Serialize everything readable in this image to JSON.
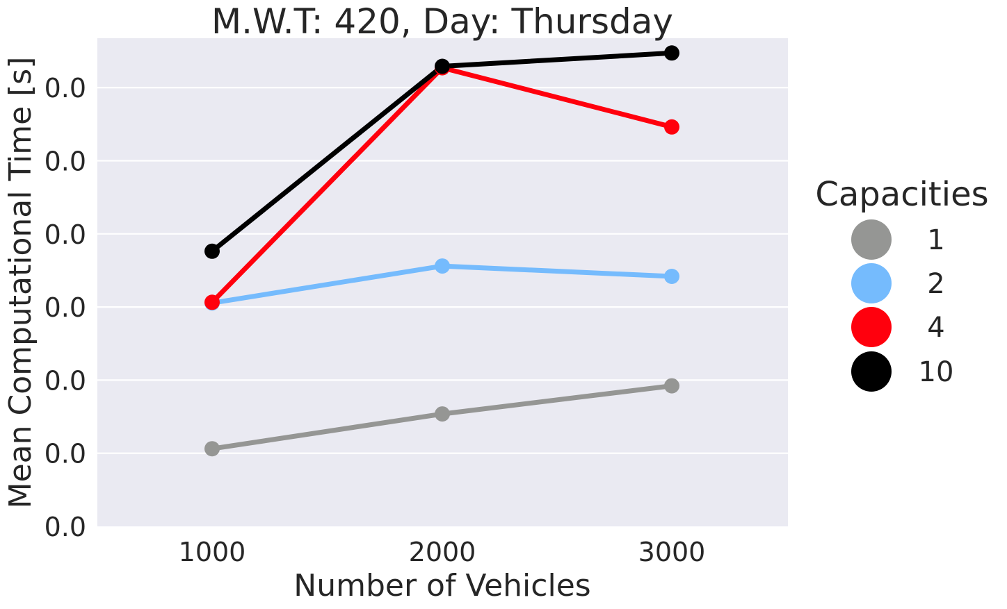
{
  "chart_data": {
    "type": "line",
    "title": "M.W.T: 420, Day: Thursday",
    "xlabel": "Number of Vehicles",
    "ylabel": "Mean Computational Time [s]",
    "categories": [
      "1000",
      "2000",
      "3000"
    ],
    "y_tick_labels": [
      "0.0",
      "0.0",
      "0.0",
      "0.0",
      "0.0",
      "0.0",
      "0.0"
    ],
    "ylim": [
      0,
      6.6
    ],
    "grid": true,
    "legend": {
      "title": "Capacities",
      "placement": "right"
    },
    "series": [
      {
        "name": "1",
        "color": "#959694",
        "values": [
          1.05,
          1.52,
          1.9
        ]
      },
      {
        "name": "2",
        "color": "#75bbfd",
        "values": [
          3.02,
          3.52,
          3.38
        ]
      },
      {
        "name": "4",
        "color": "#ff000d",
        "values": [
          3.03,
          6.2,
          5.4
        ]
      },
      {
        "name": "10",
        "color": "#000000",
        "values": [
          3.72,
          6.22,
          6.4
        ]
      }
    ]
  }
}
